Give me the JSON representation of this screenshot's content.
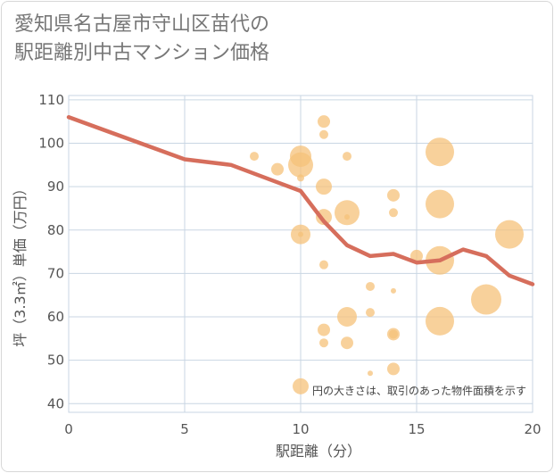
{
  "title": "愛知県名古屋市守山区苗代の\n駅距離別中古マンション価格",
  "chart_data": {
    "type": "scatter",
    "title": "愛知県名古屋市守山区苗代の駅距離別中古マンション価格",
    "xlabel": "駅距離（分）",
    "ylabel": "坪（3.3㎡）単価（万円）",
    "xlim": [
      0,
      20
    ],
    "ylim": [
      38,
      111
    ],
    "xticks": [
      "0",
      "5",
      "10",
      "15",
      "20"
    ],
    "yticks": [
      "40",
      "50",
      "60",
      "70",
      "80",
      "90",
      "100",
      "110"
    ],
    "note": "円の大きさは、取引のあった物件面積を示す",
    "colors": {
      "bubble": "#f5c27a",
      "line": "#d66e5c",
      "grid": "#c9d6e3"
    },
    "bubbles": [
      {
        "x": 8,
        "y": 97,
        "size": 5
      },
      {
        "x": 9,
        "y": 94,
        "size": 7
      },
      {
        "x": 10,
        "y": 97,
        "size": 12
      },
      {
        "x": 10,
        "y": 95,
        "size": 14
      },
      {
        "x": 10,
        "y": 92,
        "size": 4
      },
      {
        "x": 10,
        "y": 79,
        "size": 11
      },
      {
        "x": 10,
        "y": 79,
        "size": 3
      },
      {
        "x": 10,
        "y": 44,
        "size": 9
      },
      {
        "x": 11,
        "y": 105,
        "size": 7
      },
      {
        "x": 11,
        "y": 102,
        "size": 5
      },
      {
        "x": 11,
        "y": 90,
        "size": 9
      },
      {
        "x": 11,
        "y": 83,
        "size": 9
      },
      {
        "x": 11,
        "y": 72,
        "size": 5
      },
      {
        "x": 11,
        "y": 57,
        "size": 7
      },
      {
        "x": 11,
        "y": 54,
        "size": 5
      },
      {
        "x": 12,
        "y": 97,
        "size": 5
      },
      {
        "x": 12,
        "y": 84,
        "size": 14
      },
      {
        "x": 12,
        "y": 83,
        "size": 3
      },
      {
        "x": 12,
        "y": 60,
        "size": 11
      },
      {
        "x": 12,
        "y": 54,
        "size": 7
      },
      {
        "x": 13,
        "y": 67,
        "size": 5
      },
      {
        "x": 13,
        "y": 61,
        "size": 5
      },
      {
        "x": 13,
        "y": 47,
        "size": 3
      },
      {
        "x": 14,
        "y": 88,
        "size": 7
      },
      {
        "x": 14,
        "y": 84,
        "size": 5
      },
      {
        "x": 14,
        "y": 66,
        "size": 3
      },
      {
        "x": 14,
        "y": 56,
        "size": 7
      },
      {
        "x": 14,
        "y": 56,
        "size": 5
      },
      {
        "x": 14,
        "y": 48,
        "size": 7
      },
      {
        "x": 15,
        "y": 74,
        "size": 7
      },
      {
        "x": 16,
        "y": 98,
        "size": 16
      },
      {
        "x": 16,
        "y": 86,
        "size": 16
      },
      {
        "x": 16,
        "y": 73,
        "size": 16
      },
      {
        "x": 16,
        "y": 59,
        "size": 16
      },
      {
        "x": 18,
        "y": 64,
        "size": 17
      },
      {
        "x": 19,
        "y": 79,
        "size": 16
      }
    ],
    "series": [
      {
        "x": [
          0,
          5,
          7,
          9,
          10,
          11,
          12,
          13,
          14,
          15,
          16,
          17,
          18,
          19,
          20
        ],
        "y": [
          106,
          96.3,
          95,
          91,
          89,
          82,
          76.5,
          74,
          74.5,
          72.5,
          73,
          75.5,
          74,
          69.5,
          67.5
        ]
      }
    ]
  }
}
